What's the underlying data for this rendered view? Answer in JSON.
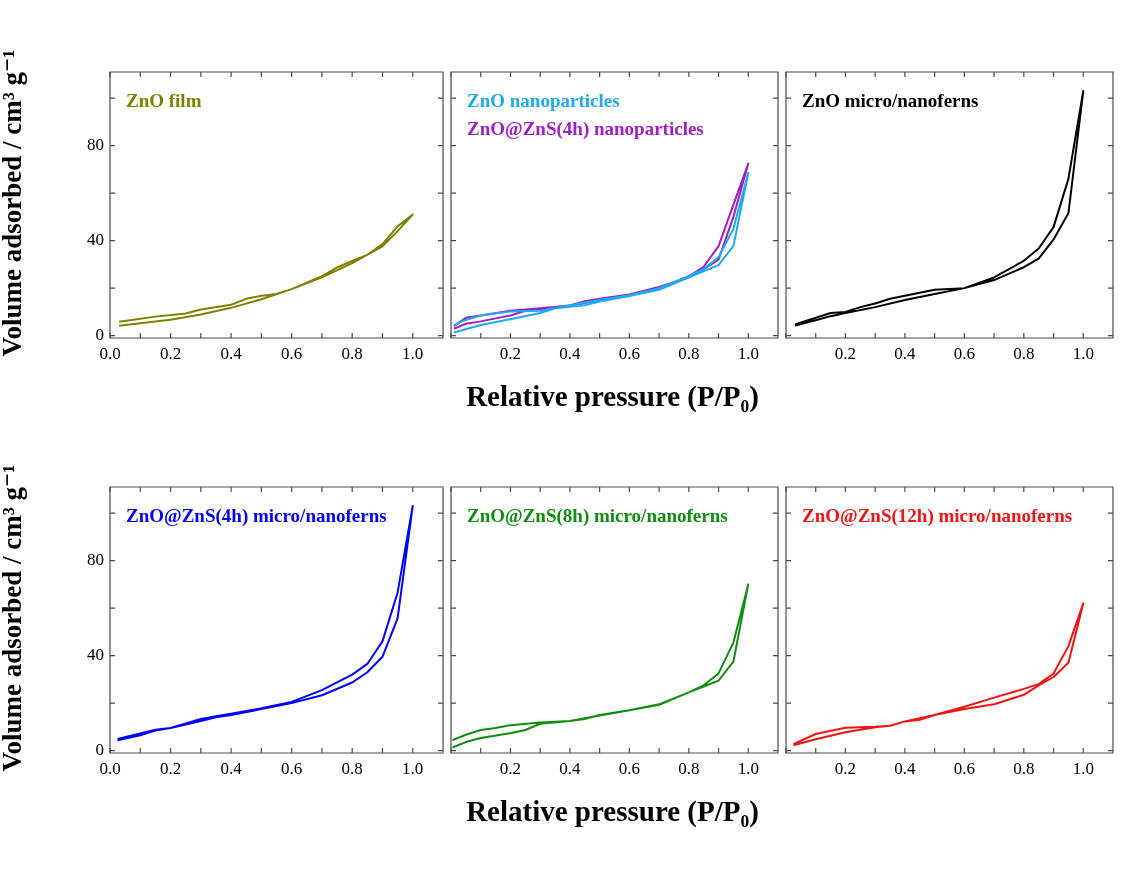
{
  "chart_data": [
    {
      "type": "line",
      "ylabel": "Volume adsorbed / cm³ g⁻¹",
      "xlim": [
        0,
        1.1
      ],
      "ylim": [
        -1,
        111
      ],
      "xticks": [
        {
          "value": 0,
          "label": "0.0"
        },
        {
          "value": 0.1,
          "label": null
        },
        {
          "value": 0.2,
          "label": "0.2"
        },
        {
          "value": 0.3,
          "label": null
        },
        {
          "value": 0.4,
          "label": "0.4"
        },
        {
          "value": 0.5,
          "label": null
        },
        {
          "value": 0.6,
          "label": "0.6"
        },
        {
          "value": 0.7,
          "label": null
        },
        {
          "value": 0.8,
          "label": "0.8"
        },
        {
          "value": 0.9,
          "label": null
        },
        {
          "value": 1.0,
          "label": "1.0"
        }
      ],
      "yticks": [
        0,
        {
          "value": 20,
          "label": null
        },
        40,
        {
          "value": 60,
          "label": null
        },
        80,
        {
          "value": 100,
          "label": null
        }
      ],
      "grid": false,
      "legend": "top left",
      "series": [
        {
          "name": "ZnO film",
          "color": "#808000",
          "x": [
            0.03,
            0.1,
            0.2,
            0.3,
            0.4,
            0.5,
            0.6,
            0.7,
            0.8,
            0.9,
            0.95,
            1.0,
            0.95,
            0.9,
            0.85,
            0.8,
            0.75,
            0.7,
            0.6,
            0.55,
            0.5,
            0.45,
            0.4,
            0.3,
            0.25,
            0.15,
            0.03
          ],
          "values": [
            4.2,
            5.2,
            6.7,
            8.9,
            11.7,
            15.3,
            19.6,
            24.5,
            30.5,
            37.6,
            44,
            51,
            46,
            38.5,
            34,
            31.5,
            28.7,
            25,
            19.6,
            17.5,
            16.8,
            15.5,
            13,
            11,
            9.3,
            8,
            5.8
          ]
        }
      ]
    },
    {
      "type": "line",
      "xlabel": "Relative pressure (P/P₀)",
      "tick_labels": "x",
      "xlim": [
        0,
        1.1
      ],
      "ylim": [
        -1,
        111
      ],
      "xticks": [
        {
          "value": 0,
          "label": null
        },
        {
          "value": 0.1,
          "label": null
        },
        {
          "value": 0.2,
          "label": "0.2"
        },
        {
          "value": 0.3,
          "label": null
        },
        {
          "value": 0.4,
          "label": "0.4"
        },
        {
          "value": 0.5,
          "label": null
        },
        {
          "value": 0.6,
          "label": "0.6"
        },
        {
          "value": 0.7,
          "label": null
        },
        {
          "value": 0.8,
          "label": "0.8"
        },
        {
          "value": 0.9,
          "label": null
        },
        {
          "value": 1.0,
          "label": "1.0"
        }
      ],
      "yticks": [
        0,
        {
          "value": 20,
          "label": null
        },
        40,
        {
          "value": 60,
          "label": null
        },
        80,
        {
          "value": 100,
          "label": null
        }
      ],
      "grid": false,
      "legend": "top left",
      "series": [
        {
          "name": "ZnO nanoparticles",
          "color": "#1eaaf0",
          "x": [
            0.01,
            0.1,
            0.2,
            0.3,
            0.35,
            0.45,
            0.5,
            0.6,
            0.7,
            0.8,
            0.9,
            0.95,
            1.0,
            0.95,
            0.9,
            0.85,
            0.8,
            0.7,
            0.6,
            0.5,
            0.4,
            0.3,
            0.2,
            0.1,
            0.03,
            0.01
          ],
          "values": [
            1.3,
            4.5,
            6.9,
            9.5,
            11.5,
            12.8,
            14.4,
            16.7,
            19.3,
            24.5,
            29.7,
            37.7,
            68.6,
            45,
            33,
            28,
            25,
            20,
            17,
            15,
            12.8,
            10.5,
            10.2,
            8.5,
            5.8,
            4.2
          ]
        },
        {
          "name": "ZnO@ZnS(4h) nanoparticles",
          "color": "#a020c8",
          "x": [
            0.01,
            0.05,
            0.1,
            0.2,
            0.25,
            0.3,
            0.4,
            0.5,
            0.6,
            0.7,
            0.8,
            0.85,
            0.9,
            1.0,
            0.95,
            0.9,
            0.85,
            0.8,
            0.7,
            0.6,
            0.5,
            0.45,
            0.4,
            0.3,
            0.2,
            0.1,
            0.05,
            0.01
          ],
          "values": [
            2.9,
            5,
            6,
            8.5,
            10.5,
            11,
            12.5,
            15,
            17,
            20,
            25,
            29,
            37.7,
            72.5,
            50,
            32,
            28,
            24.5,
            20.5,
            17.3,
            15.5,
            14.5,
            12.7,
            11.5,
            10.5,
            8.5,
            7.5,
            4
          ]
        }
      ]
    },
    {
      "type": "line",
      "tick_labels": "x",
      "xlim": [
        0,
        1.1
      ],
      "ylim": [
        -1,
        111
      ],
      "xticks": [
        {
          "value": 0,
          "label": null
        },
        {
          "value": 0.1,
          "label": null
        },
        {
          "value": 0.2,
          "label": "0.2"
        },
        {
          "value": 0.3,
          "label": null
        },
        {
          "value": 0.4,
          "label": "0.4"
        },
        {
          "value": 0.5,
          "label": null
        },
        {
          "value": 0.6,
          "label": "0.6"
        },
        {
          "value": 0.7,
          "label": null
        },
        {
          "value": 0.8,
          "label": "0.8"
        },
        {
          "value": 0.9,
          "label": null
        },
        {
          "value": 1.0,
          "label": "1.0"
        }
      ],
      "yticks": [
        0,
        {
          "value": 20,
          "label": null
        },
        40,
        {
          "value": 60,
          "label": null
        },
        80,
        {
          "value": 100,
          "label": null
        }
      ],
      "grid": false,
      "legend": "top left",
      "series": [
        {
          "name": "ZnO micro/nanoferns",
          "color": "#000000",
          "x": [
            0.03,
            0.1,
            0.15,
            0.2,
            0.3,
            0.4,
            0.5,
            0.6,
            0.7,
            0.8,
            0.85,
            0.9,
            0.95,
            1.0,
            0.95,
            0.9,
            0.85,
            0.8,
            0.7,
            0.6,
            0.5,
            0.35,
            0.3,
            0.25,
            0.2,
            0.15,
            0.03
          ],
          "values": [
            4.2,
            6.5,
            8.2,
            9.5,
            12,
            15,
            17.5,
            20,
            23.4,
            28.8,
            32.4,
            40.5,
            51.5,
            103,
            66,
            45.7,
            36.7,
            31.5,
            24.5,
            20,
            19.3,
            15.5,
            13.5,
            12,
            10,
            9.5,
            4.7
          ]
        }
      ]
    },
    {
      "type": "line",
      "ylabel": "Volume adsorbed / cm³ g⁻¹",
      "xlim": [
        0,
        1.1
      ],
      "ylim": [
        -1,
        111
      ],
      "xticks": [
        {
          "value": 0,
          "label": "0.0"
        },
        {
          "value": 0.1,
          "label": null
        },
        {
          "value": 0.2,
          "label": "0.2"
        },
        {
          "value": 0.3,
          "label": null
        },
        {
          "value": 0.4,
          "label": "0.4"
        },
        {
          "value": 0.5,
          "label": null
        },
        {
          "value": 0.6,
          "label": "0.6"
        },
        {
          "value": 0.7,
          "label": null
        },
        {
          "value": 0.8,
          "label": "0.8"
        },
        {
          "value": 0.9,
          "label": null
        },
        {
          "value": 1.0,
          "label": "1.0"
        }
      ],
      "yticks": [
        0,
        {
          "value": 20,
          "label": null
        },
        40,
        {
          "value": 60,
          "label": null
        },
        80,
        {
          "value": 100,
          "label": null
        }
      ],
      "grid": false,
      "legend": "top left",
      "series": [
        {
          "name": "ZnO@ZnS(4h) micro/nanoferns",
          "color": "#0000ff",
          "x": [
            0.025,
            0.1,
            0.15,
            0.2,
            0.25,
            0.3,
            0.35,
            0.4,
            0.5,
            0.6,
            0.7,
            0.8,
            0.85,
            0.9,
            0.95,
            1.0,
            0.95,
            0.9,
            0.85,
            0.8,
            0.7,
            0.6,
            0.5,
            0.4,
            0.35,
            0.3,
            0.2,
            0.15,
            0.025
          ],
          "values": [
            4.4,
            6.5,
            8.5,
            9.5,
            11,
            12.5,
            14,
            15,
            17.5,
            20,
            23.3,
            28.7,
            33,
            39.5,
            55.7,
            103,
            66.5,
            46,
            36.5,
            32,
            25.5,
            20.5,
            17.8,
            15.5,
            14.5,
            13.3,
            9.5,
            8.8,
            4.9
          ]
        }
      ]
    },
    {
      "type": "line",
      "xlabel": "Relative pressure (P/P₀)",
      "tick_labels": "x",
      "xlim": [
        0,
        1.1
      ],
      "ylim": [
        -1,
        111
      ],
      "xticks": [
        {
          "value": 0,
          "label": null
        },
        {
          "value": 0.1,
          "label": null
        },
        {
          "value": 0.2,
          "label": "0.2"
        },
        {
          "value": 0.3,
          "label": null
        },
        {
          "value": 0.4,
          "label": "0.4"
        },
        {
          "value": 0.5,
          "label": null
        },
        {
          "value": 0.6,
          "label": "0.6"
        },
        {
          "value": 0.7,
          "label": null
        },
        {
          "value": 0.8,
          "label": "0.8"
        },
        {
          "value": 0.9,
          "label": null
        },
        {
          "value": 1.0,
          "label": "1.0"
        }
      ],
      "yticks": [
        0,
        {
          "value": 20,
          "label": null
        },
        40,
        {
          "value": 60,
          "label": null
        },
        80,
        {
          "value": 100,
          "label": null
        }
      ],
      "grid": false,
      "legend": "top left",
      "series": [
        {
          "name": "ZnO@ZnS(8h) micro/nanoferns",
          "color": "#108c10",
          "x": [
            0.005,
            0.05,
            0.1,
            0.2,
            0.25,
            0.3,
            0.4,
            0.45,
            0.5,
            0.6,
            0.7,
            0.8,
            0.85,
            0.9,
            0.95,
            1.0,
            0.95,
            0.9,
            0.85,
            0.8,
            0.7,
            0.6,
            0.5,
            0.4,
            0.3,
            0.2,
            0.15,
            0.1,
            0.05,
            0.005
          ],
          "values": [
            1.3,
            3.6,
            5.3,
            7.3,
            8.7,
            11.3,
            12.5,
            13.3,
            15,
            17,
            19.3,
            24.5,
            27,
            29.5,
            37.5,
            70,
            45.5,
            32.5,
            27.5,
            24.5,
            19.5,
            17,
            14.8,
            12.5,
            11.8,
            10.7,
            9.5,
            8.7,
            6.7,
            4.4
          ]
        }
      ]
    },
    {
      "type": "line",
      "tick_labels": "x",
      "xlim": [
        0,
        1.1
      ],
      "ylim": [
        -1,
        111
      ],
      "xticks": [
        {
          "value": 0,
          "label": null
        },
        {
          "value": 0.1,
          "label": null
        },
        {
          "value": 0.2,
          "label": "0.2"
        },
        {
          "value": 0.3,
          "label": null
        },
        {
          "value": 0.4,
          "label": "0.4"
        },
        {
          "value": 0.5,
          "label": null
        },
        {
          "value": 0.6,
          "label": "0.6"
        },
        {
          "value": 0.7,
          "label": null
        },
        {
          "value": 0.8,
          "label": "0.8"
        },
        {
          "value": 0.9,
          "label": null
        },
        {
          "value": 1.0,
          "label": "1.0"
        }
      ],
      "yticks": [
        0,
        {
          "value": 20,
          "label": null
        },
        40,
        {
          "value": 60,
          "label": null
        },
        80,
        {
          "value": 100,
          "label": null
        }
      ],
      "grid": false,
      "legend": "top left",
      "series": [
        {
          "name": "ZnO@ZnS(12h) micro/nanoferns",
          "color": "#f01414",
          "x": [
            0.025,
            0.1,
            0.2,
            0.3,
            0.35,
            0.4,
            0.45,
            0.5,
            0.6,
            0.7,
            0.8,
            0.85,
            0.9,
            0.95,
            1.0,
            0.95,
            0.9,
            0.85,
            0.8,
            0.7,
            0.6,
            0.5,
            0.4,
            0.35,
            0.3,
            0.2,
            0.1,
            0.025
          ],
          "values": [
            2.3,
            4.8,
            7.7,
            9.8,
            10.5,
            12.3,
            13,
            15,
            17.5,
            19.5,
            23.5,
            27.5,
            31,
            37,
            62,
            44,
            32.5,
            28,
            26,
            22.3,
            18.5,
            15,
            12.3,
            10.5,
            10.1,
            9.6,
            7,
            2.7
          ]
        }
      ]
    }
  ]
}
